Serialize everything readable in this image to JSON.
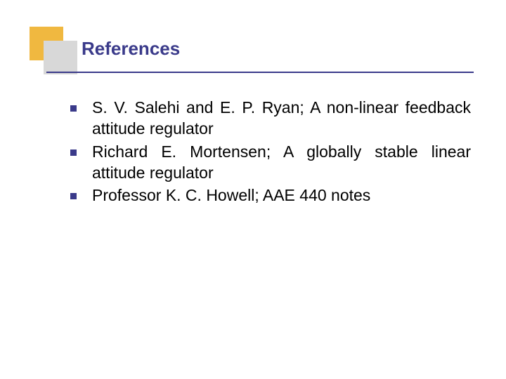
{
  "title": "References",
  "title_color": "#3a3a8a",
  "title_fontsize": 26,
  "square_back_color": "#f0b840",
  "square_front_color": "#d8d8d8",
  "underline_color": "#3a3a8a",
  "underline_width": 608,
  "bullet_color": "#3a3a8a",
  "text_color": "#000000",
  "text_fontsize": 23,
  "line_height": 1.32,
  "items": [
    "S. V. Salehi and E. P. Ryan; A non-linear feedback attitude regulator",
    "Richard E. Mortensen; A globally stable linear attitude regulator",
    "Professor K. C. Howell; AAE 440 notes"
  ]
}
